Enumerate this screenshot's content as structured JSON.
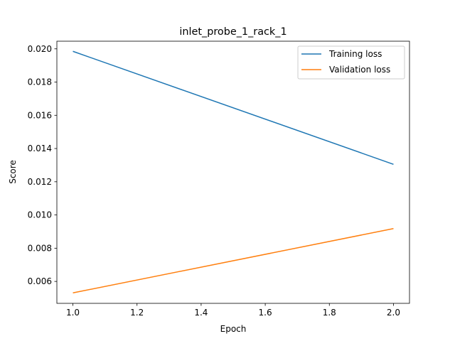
{
  "chart_data": {
    "type": "line",
    "title": "inlet_probe_1_rack_1",
    "xlabel": "Epoch",
    "ylabel": "Score",
    "xlim": [
      0.95,
      2.05
    ],
    "ylim": [
      0.00468,
      0.02046
    ],
    "xticks": [
      1.0,
      1.2,
      1.4,
      1.6,
      1.8,
      2.0
    ],
    "xtick_labels": [
      "1.0",
      "1.2",
      "1.4",
      "1.6",
      "1.8",
      "2.0"
    ],
    "yticks": [
      0.006,
      0.008,
      0.01,
      0.012,
      0.014,
      0.016,
      0.018,
      0.02
    ],
    "ytick_labels": [
      "0.006",
      "0.008",
      "0.010",
      "0.012",
      "0.014",
      "0.016",
      "0.018",
      "0.020"
    ],
    "grid": false,
    "legend_position": "top-right",
    "series": [
      {
        "name": "Training loss",
        "color": "#1f77b4",
        "x": [
          1.0,
          2.0
        ],
        "y": [
          0.01985,
          0.01305
        ]
      },
      {
        "name": "Validation loss",
        "color": "#ff7f0e",
        "x": [
          1.0,
          2.0
        ],
        "y": [
          0.00531,
          0.00918
        ]
      }
    ]
  }
}
